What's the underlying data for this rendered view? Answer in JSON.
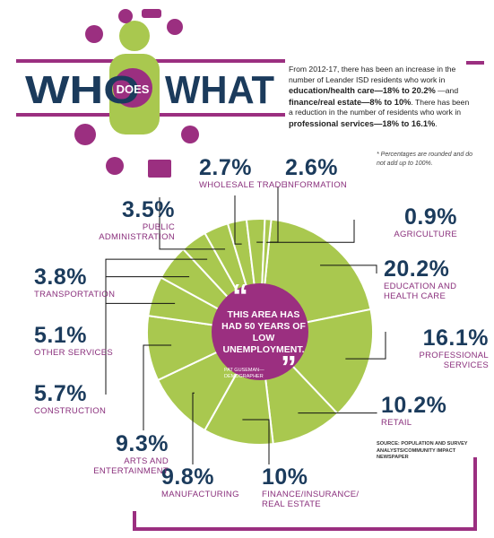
{
  "chart_data": {
    "type": "donut",
    "title_parts": [
      "WHO",
      "DOES",
      "WHAT"
    ],
    "description": [
      "From 2012-17, there has been an increase in the number of Leander ISD residents who work in ",
      "education/health care—18% to 20.2%",
      " —and ",
      "finance/real estate—8% to 10%",
      ". There has been a reduction in the number of residents who work in ",
      "professional services—18% to 16.1%",
      "."
    ],
    "note": "* Percentages are rounded and do not add up to 100%.",
    "quote": "THIS AREA HAS HAD 50 YEARS OF LOW UNEMPLOYMENT.",
    "quote_attribution": "PAT GUSEMAN—DEMOGRAPHER",
    "source": "SOURCE: POPULATION AND SURVEY ANALYSTS/COMMUNITY IMPACT NEWSPAPER",
    "categories": [
      "EDUCATION AND HEALTH CARE",
      "PROFESSIONAL SERVICES",
      "RETAIL",
      "FINANCE/INSURANCE/ REAL ESTATE",
      "MANUFACTURING",
      "ARTS AND ENTERTAINMENT",
      "CONSTRUCTION",
      "OTHER SERVICES",
      "TRANSPORTATION",
      "PUBLIC ADMINISTRATION",
      "WHOLESALE TRADE",
      "INFORMATION",
      "AGRICULTURE"
    ],
    "values": [
      20.2,
      16.1,
      10.2,
      10,
      9.8,
      9.3,
      5.7,
      5.1,
      3.8,
      3.5,
      2.7,
      2.6,
      0.9
    ],
    "value_labels": [
      "20.2%",
      "16.1%",
      "10.2%",
      "10%",
      "9.8%",
      "9.3%",
      "5.7%",
      "5.1%",
      "3.8%",
      "3.5%",
      "2.7%",
      "2.6%",
      "0.9%"
    ],
    "color": "#a9c84f",
    "center_color": "#9b2f80"
  }
}
